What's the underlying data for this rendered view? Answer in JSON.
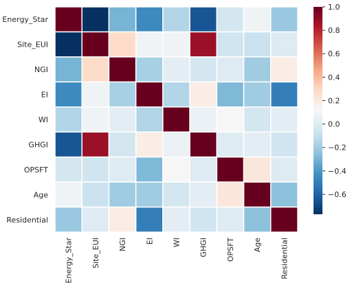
{
  "chart_data": {
    "type": "heatmap",
    "title": "",
    "xlabel": "",
    "ylabel": "",
    "labels": [
      "Energy_Star",
      "Site_EUI",
      "NGI",
      "EI",
      "WI",
      "GHGI",
      "OPSFT",
      "Age",
      "Residential"
    ],
    "matrix": [
      [
        1.0,
        -0.77,
        -0.3,
        -0.45,
        -0.15,
        -0.65,
        -0.05,
        0.08,
        -0.22
      ],
      [
        -0.77,
        1.0,
        0.28,
        0.08,
        0.08,
        0.88,
        -0.06,
        -0.08,
        0.0
      ],
      [
        -0.3,
        0.28,
        1.0,
        -0.18,
        0.02,
        -0.05,
        0.0,
        -0.2,
        0.18
      ],
      [
        -0.45,
        0.08,
        -0.18,
        1.0,
        -0.15,
        0.18,
        -0.28,
        -0.2,
        -0.5
      ],
      [
        -0.15,
        0.08,
        0.02,
        -0.15,
        1.0,
        0.06,
        0.11,
        -0.05,
        0.02
      ],
      [
        -0.65,
        0.88,
        -0.05,
        0.18,
        0.06,
        1.0,
        0.0,
        0.02,
        -0.06
      ],
      [
        -0.05,
        -0.06,
        0.0,
        -0.28,
        0.11,
        0.0,
        1.0,
        0.22,
        0.0
      ],
      [
        0.08,
        -0.08,
        -0.2,
        -0.2,
        -0.05,
        0.02,
        0.22,
        1.0,
        -0.25
      ],
      [
        -0.22,
        0.0,
        0.18,
        -0.5,
        0.02,
        -0.06,
        0.0,
        -0.25,
        1.0
      ]
    ],
    "colorbar": {
      "min": -0.77,
      "max": 1.0,
      "ticks": [
        -0.6,
        -0.4,
        -0.2,
        0.0,
        0.2,
        0.4,
        0.6,
        0.8,
        1.0
      ],
      "tick_labels": [
        "−0.6",
        "−0.4",
        "−0.2",
        "0.0",
        "0.2",
        "0.4",
        "0.6",
        "0.8",
        "1.0"
      ]
    },
    "colormap": "RdBu_r",
    "colormap_stops": [
      "#053061",
      "#2166ac",
      "#4393c3",
      "#92c5de",
      "#d1e5f0",
      "#f7f7f7",
      "#fddbc7",
      "#f4a582",
      "#d6604d",
      "#b2182b",
      "#67001f"
    ],
    "grid_line_color": "#ffffff"
  }
}
